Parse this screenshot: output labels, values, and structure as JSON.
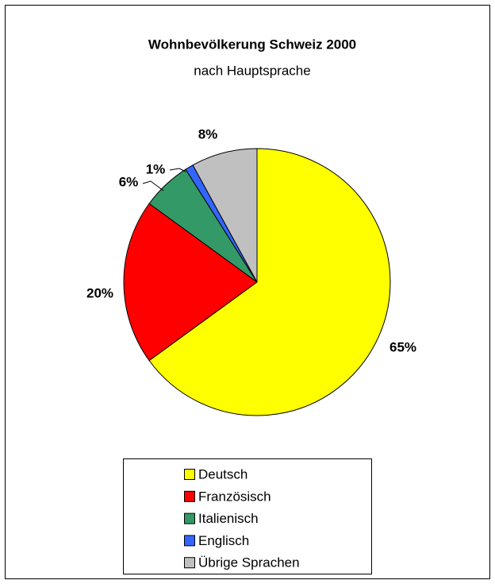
{
  "chart_data": {
    "type": "pie",
    "title": "Wohnbevölkerung Schweiz 2000",
    "subtitle": "nach Hauptsprache",
    "categories": [
      "Deutsch",
      "Französisch",
      "Italienisch",
      "Englisch",
      "Übrige Sprachen"
    ],
    "values": [
      65,
      20,
      6,
      1,
      8
    ],
    "value_labels": [
      "65%",
      "20%",
      "6%",
      "1%",
      "8%"
    ],
    "colors": [
      "#ffff00",
      "#ff0000",
      "#339966",
      "#3366ff",
      "#c0c0c0"
    ],
    "legend": "bottom"
  }
}
